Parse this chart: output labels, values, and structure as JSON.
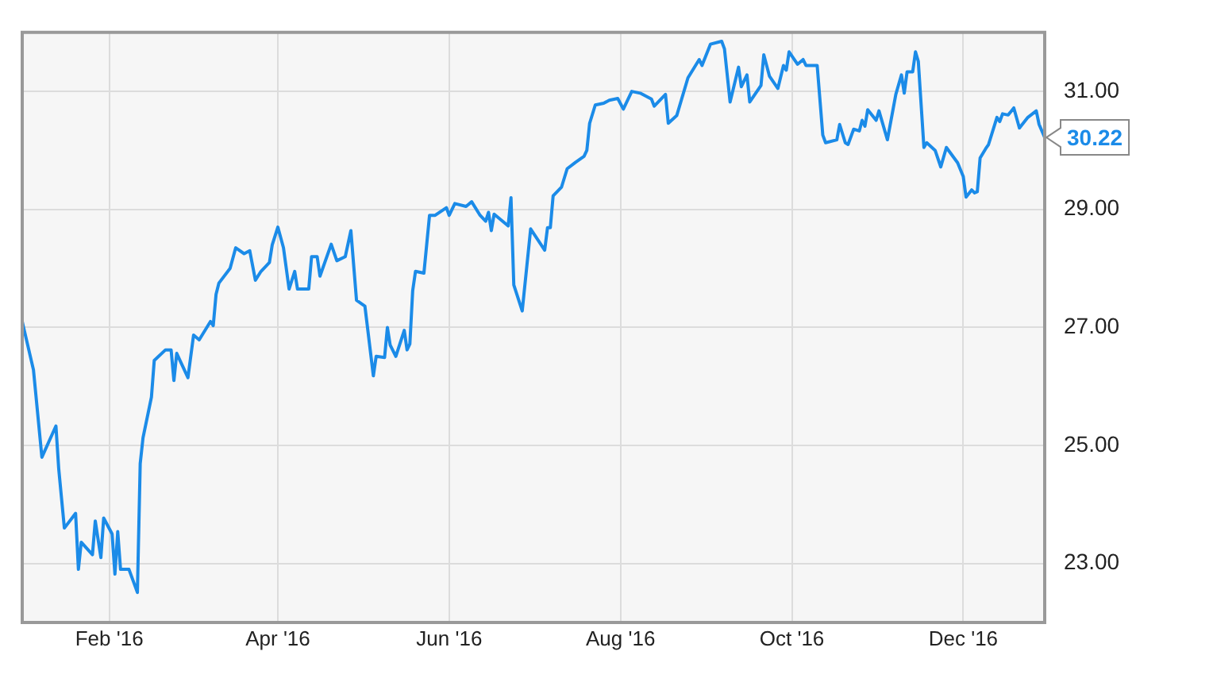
{
  "chart_data": {
    "type": "line",
    "x": [
      "2016-01-01",
      "2016-01-05",
      "2016-01-08",
      "2016-01-13",
      "2016-01-14",
      "2016-01-16",
      "2016-01-20",
      "2016-01-21",
      "2016-01-22",
      "2016-01-26",
      "2016-01-27",
      "2016-01-29",
      "2016-01-30",
      "2016-02-02",
      "2016-02-03",
      "2016-02-04",
      "2016-02-05",
      "2016-02-08",
      "2016-02-11",
      "2016-02-12",
      "2016-02-13",
      "2016-02-16",
      "2016-02-17",
      "2016-02-21",
      "2016-02-23",
      "2016-02-24",
      "2016-02-25",
      "2016-02-29",
      "2016-03-02",
      "2016-03-04",
      "2016-03-08",
      "2016-03-09",
      "2016-03-10",
      "2016-03-11",
      "2016-03-15",
      "2016-03-17",
      "2016-03-20",
      "2016-03-22",
      "2016-03-24",
      "2016-03-26",
      "2016-03-29",
      "2016-03-30",
      "2016-04-01",
      "2016-04-03",
      "2016-04-05",
      "2016-04-07",
      "2016-04-08",
      "2016-04-12",
      "2016-04-13",
      "2016-04-15",
      "2016-04-16",
      "2016-04-20",
      "2016-04-22",
      "2016-04-25",
      "2016-04-27",
      "2016-04-29",
      "2016-05-02",
      "2016-05-05",
      "2016-05-06",
      "2016-05-09",
      "2016-05-10",
      "2016-05-11",
      "2016-05-13",
      "2016-05-16",
      "2016-05-17",
      "2016-05-18",
      "2016-05-19",
      "2016-05-20",
      "2016-05-23",
      "2016-05-25",
      "2016-05-27",
      "2016-05-31",
      "2016-06-01",
      "2016-06-03",
      "2016-06-07",
      "2016-06-09",
      "2016-06-12",
      "2016-06-14",
      "2016-06-15",
      "2016-06-16",
      "2016-06-17",
      "2016-06-22",
      "2016-06-23",
      "2016-06-24",
      "2016-06-27",
      "2016-06-30",
      "2016-07-05",
      "2016-07-06",
      "2016-07-07",
      "2016-07-08",
      "2016-07-11",
      "2016-07-13",
      "2016-07-16",
      "2016-07-19",
      "2016-07-20",
      "2016-07-21",
      "2016-07-23",
      "2016-07-26",
      "2016-07-28",
      "2016-07-31",
      "2016-08-02",
      "2016-08-05",
      "2016-08-08",
      "2016-08-12",
      "2016-08-13",
      "2016-08-17",
      "2016-08-18",
      "2016-08-21",
      "2016-08-25",
      "2016-08-29",
      "2016-08-30",
      "2016-09-02",
      "2016-09-06",
      "2016-09-07",
      "2016-09-09",
      "2016-09-12",
      "2016-09-13",
      "2016-09-15",
      "2016-09-16",
      "2016-09-20",
      "2016-09-21",
      "2016-09-23",
      "2016-09-26",
      "2016-09-28",
      "2016-09-29",
      "2016-09-30",
      "2016-10-03",
      "2016-10-05",
      "2016-10-06",
      "2016-10-10",
      "2016-10-12",
      "2016-10-13",
      "2016-10-17",
      "2016-10-18",
      "2016-10-20",
      "2016-10-21",
      "2016-10-23",
      "2016-10-25",
      "2016-10-26",
      "2016-10-27",
      "2016-10-28",
      "2016-10-31",
      "2016-11-01",
      "2016-11-04",
      "2016-11-07",
      "2016-11-09",
      "2016-11-10",
      "2016-11-11",
      "2016-11-13",
      "2016-11-14",
      "2016-11-15",
      "2016-11-17",
      "2016-11-18",
      "2016-11-21",
      "2016-11-23",
      "2016-11-25",
      "2016-11-29",
      "2016-12-01",
      "2016-12-02",
      "2016-12-04",
      "2016-12-05",
      "2016-12-06",
      "2016-12-07",
      "2016-12-09",
      "2016-12-10",
      "2016-12-13",
      "2016-12-14",
      "2016-12-15",
      "2016-12-17",
      "2016-12-19",
      "2016-12-21",
      "2016-12-24",
      "2016-12-27",
      "2016-12-28",
      "2016-12-30"
    ],
    "series": [
      {
        "color": "#1b8be8",
        "values": [
          27.1,
          26.28,
          24.8,
          25.33,
          24.6,
          23.6,
          23.85,
          22.9,
          23.36,
          23.15,
          23.72,
          23.1,
          23.77,
          23.5,
          22.82,
          23.54,
          22.9,
          22.9,
          22.51,
          24.69,
          25.13,
          25.82,
          26.44,
          26.62,
          26.62,
          26.1,
          26.56,
          26.15,
          26.87,
          26.79,
          27.1,
          27.03,
          27.56,
          27.75,
          28.0,
          28.35,
          28.25,
          28.3,
          27.8,
          27.95,
          28.1,
          28.4,
          28.7,
          28.35,
          27.65,
          27.95,
          27.65,
          27.65,
          28.2,
          28.2,
          27.87,
          28.41,
          28.13,
          28.2,
          28.64,
          27.46,
          27.36,
          26.18,
          26.51,
          26.49,
          27.0,
          26.7,
          26.51,
          26.95,
          26.62,
          26.72,
          27.62,
          27.95,
          27.92,
          28.9,
          28.9,
          29.03,
          28.9,
          29.1,
          29.05,
          29.13,
          28.9,
          28.8,
          28.95,
          28.64,
          28.92,
          28.72,
          29.2,
          27.72,
          27.28,
          28.67,
          28.31,
          28.69,
          28.69,
          29.23,
          29.38,
          29.69,
          29.8,
          29.9,
          30.0,
          30.46,
          30.77,
          30.8,
          30.85,
          30.88,
          30.7,
          31.0,
          30.97,
          30.87,
          30.75,
          30.95,
          30.46,
          30.59,
          31.23,
          31.54,
          31.44,
          31.8,
          31.85,
          31.72,
          30.82,
          31.41,
          31.08,
          31.28,
          30.82,
          31.1,
          31.62,
          31.26,
          31.05,
          31.44,
          31.36,
          31.67,
          31.46,
          31.54,
          31.44,
          31.44,
          30.26,
          30.13,
          30.18,
          30.44,
          30.13,
          30.1,
          30.36,
          30.33,
          30.51,
          30.41,
          30.69,
          30.51,
          30.67,
          30.18,
          30.95,
          31.28,
          30.97,
          31.33,
          31.33,
          31.67,
          31.51,
          30.05,
          30.13,
          30.0,
          29.72,
          30.05,
          29.79,
          29.56,
          29.21,
          29.33,
          29.28,
          29.3,
          29.87,
          30.03,
          30.1,
          30.56,
          30.49,
          30.62,
          30.6,
          30.72,
          30.38,
          30.56,
          30.67,
          30.44,
          30.22
        ]
      }
    ],
    "xlim": [
      "2016-01-01",
      "2016-12-30"
    ],
    "xticks": [
      {
        "value": "2016-02-01",
        "label": "Feb '16"
      },
      {
        "value": "2016-04-01",
        "label": "Apr '16"
      },
      {
        "value": "2016-06-01",
        "label": "Jun '16"
      },
      {
        "value": "2016-08-01",
        "label": "Aug '16"
      },
      {
        "value": "2016-10-01",
        "label": "Oct '16"
      },
      {
        "value": "2016-12-01",
        "label": "Dec '16"
      }
    ],
    "ylim": [
      22,
      32
    ],
    "yticks": [
      {
        "value": 23,
        "label": "23.00"
      },
      {
        "value": 25,
        "label": "25.00"
      },
      {
        "value": 27,
        "label": "27.00"
      },
      {
        "value": 29,
        "label": "29.00"
      },
      {
        "value": 31,
        "label": "31.00"
      }
    ],
    "grid": true,
    "legend": false,
    "marker": "none",
    "annotations": [
      {
        "text": "30.22",
        "x": "2016-12-30",
        "y": 30.22
      }
    ]
  }
}
